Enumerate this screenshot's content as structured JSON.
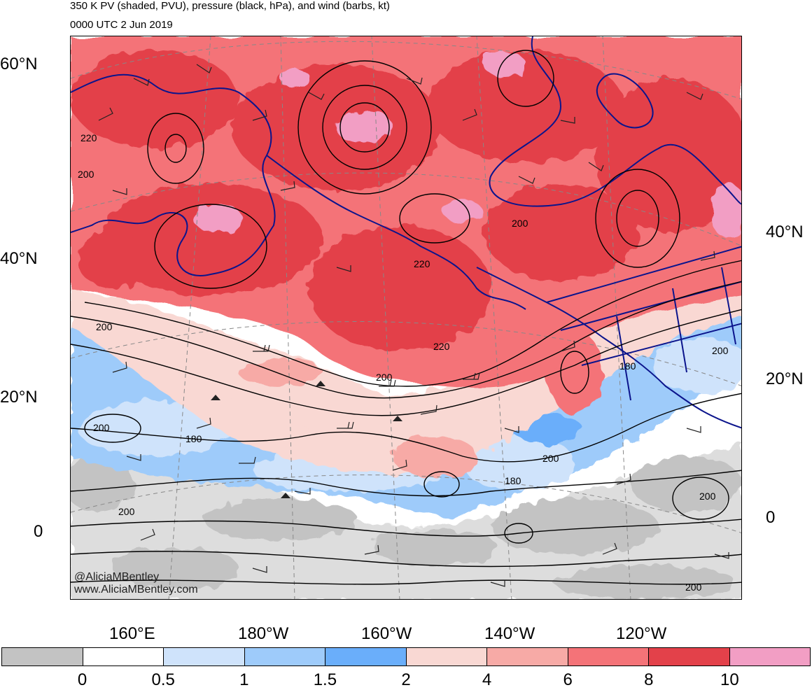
{
  "title": {
    "line1": "350 K PV (shaded, PVU), pressure (black, hPa), and wind (barbs, kt)",
    "line2": "0000 UTC 2 Jun 2019"
  },
  "lat_labels": {
    "left": [
      "60°N",
      "40°N",
      "20°N",
      "0"
    ],
    "right": [
      "40°N",
      "20°N",
      "0"
    ]
  },
  "lon_labels": [
    "160°E",
    "180°W",
    "160°W",
    "140°W",
    "120°W"
  ],
  "contour_labels": [
    "220",
    "200",
    "200",
    "220",
    "220",
    "200",
    "200",
    "180",
    "200",
    "180",
    "200",
    "180",
    "200",
    "200",
    "200",
    "200"
  ],
  "credit": {
    "line1": "@AliciaMBentley",
    "line2": "www.AliciaMBentley.com"
  },
  "colorbar": {
    "labels": [
      "0",
      "0.5",
      "1",
      "1.5",
      "2",
      "4",
      "6",
      "8",
      "10"
    ],
    "colors": [
      "#c3c3c3",
      "#ffffff",
      "#cfe3fb",
      "#9ecbfa",
      "#6aaefa",
      "#f9d8d3",
      "#f7aaa6",
      "#f47378",
      "#e3414a",
      "#f29ec4"
    ]
  },
  "colors": {
    "coastline": "#0b148c",
    "contour": "#000000",
    "gridline": "#888888"
  }
}
